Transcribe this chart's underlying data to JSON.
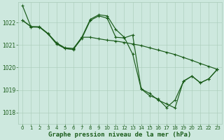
{
  "bg_color": "#cde8de",
  "grid_color": "#a8cbb8",
  "line_color": "#1a5c1a",
  "marker_color": "#1a5c1a",
  "title": "Graphe pression niveau de la mer (hPa)",
  "title_fontsize": 6.5,
  "xlim": [
    -0.5,
    23.5
  ],
  "ylim": [
    1017.5,
    1022.9
  ],
  "yticks": [
    1018,
    1019,
    1020,
    1021,
    1022
  ],
  "xticks": [
    0,
    1,
    2,
    3,
    4,
    5,
    6,
    7,
    8,
    9,
    10,
    11,
    12,
    13,
    14,
    15,
    16,
    17,
    18,
    19,
    20,
    21,
    22,
    23
  ],
  "line1": [
    1022.75,
    1021.8,
    1021.8,
    1021.5,
    1021.05,
    1020.85,
    1020.8,
    1021.35,
    1022.15,
    1022.35,
    1022.3,
    1021.7,
    1021.35,
    1020.6,
    1019.05,
    1018.85,
    1018.55,
    1018.38,
    1018.2,
    1019.4,
    1019.62,
    1019.32,
    1019.5,
    1019.92
  ],
  "line2": [
    1022.1,
    1021.82,
    1021.8,
    1021.5,
    1021.1,
    1020.85,
    1020.82,
    1021.3,
    1022.1,
    1022.3,
    1022.2,
    1021.35,
    1021.32,
    1021.45,
    1019.05,
    1018.75,
    1018.6,
    1018.22,
    1018.55,
    1019.38,
    1019.62,
    1019.32,
    1019.5,
    1019.92
  ],
  "line3": [
    1022.1,
    1021.82,
    1021.82,
    1021.52,
    1021.1,
    1020.88,
    1020.85,
    1021.35,
    1021.35,
    1021.28,
    1021.22,
    1021.18,
    1021.12,
    1021.05,
    1020.98,
    1020.88,
    1020.78,
    1020.68,
    1020.58,
    1020.45,
    1020.32,
    1020.18,
    1020.05,
    1019.92
  ]
}
